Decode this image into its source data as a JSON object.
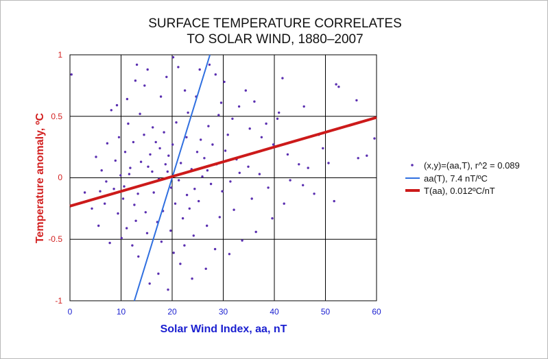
{
  "chart_data": {
    "type": "scatter",
    "title_lines": [
      "SURFACE TEMPERATURE CORRELATES",
      "TO SOLAR WIND, 1880–2007"
    ],
    "xlabel": "Solar Wind Index, aa, nT",
    "ylabel": "Temperature anomaly, ºC",
    "xlim": [
      0,
      60
    ],
    "ylim": [
      -1,
      1
    ],
    "x_ticks": [
      "0",
      "10",
      "20",
      "30",
      "40",
      "50",
      "60"
    ],
    "y_ticks": [
      "1",
      "0.5",
      "0",
      "-0.5",
      "-1"
    ],
    "grid": true,
    "legend_position": "right",
    "colors": {
      "points": "#5a2fb0",
      "fit_aa_of_T": "#2f6fe0",
      "fit_T_of_aa": "#cc1a1a",
      "x_axis_text": "#1a1fd0",
      "y_axis_text": "#d21f1f"
    },
    "series": [
      {
        "name": "(x,y)=(aa,T), r^2 = 0.089",
        "kind": "scatter",
        "points": [
          [
            20.2,
            0.98
          ],
          [
            28.5,
            0.84
          ],
          [
            30.2,
            0.78
          ],
          [
            41.6,
            0.81
          ],
          [
            52.1,
            0.76
          ],
          [
            52.6,
            0.74
          ],
          [
            56.1,
            0.63
          ],
          [
            45.8,
            0.58
          ],
          [
            40.9,
            0.53
          ],
          [
            40.6,
            0.48
          ],
          [
            48.7,
            0.35
          ],
          [
            49.5,
            0.24
          ],
          [
            58.1,
            0.18
          ],
          [
            59.6,
            0.32
          ],
          [
            56.4,
            0.16
          ],
          [
            50.6,
            0.12
          ],
          [
            46.6,
            0.08
          ],
          [
            38.4,
            0.44
          ],
          [
            36.1,
            0.62
          ],
          [
            34.4,
            0.71
          ],
          [
            33.1,
            0.58
          ],
          [
            27.3,
            0.92
          ],
          [
            25.4,
            0.88
          ],
          [
            21.2,
            0.9
          ],
          [
            18.9,
            0.82
          ],
          [
            15.2,
            0.88
          ],
          [
            14.6,
            0.75
          ],
          [
            12.8,
            0.79
          ],
          [
            13.1,
            0.92
          ],
          [
            11.2,
            0.64
          ],
          [
            9.2,
            0.59
          ],
          [
            8.1,
            0.55
          ],
          [
            0.3,
            0.84
          ],
          [
            17.8,
            0.66
          ],
          [
            22.5,
            0.71
          ],
          [
            24.7,
            0.66
          ],
          [
            29.6,
            0.61
          ],
          [
            31.8,
            0.48
          ],
          [
            35.2,
            0.4
          ],
          [
            37.5,
            0.33
          ],
          [
            39.8,
            0.27
          ],
          [
            42.6,
            0.19
          ],
          [
            44.8,
            0.11
          ],
          [
            43.1,
            -0.02
          ],
          [
            45.6,
            -0.06
          ],
          [
            47.8,
            -0.13
          ],
          [
            51.7,
            -0.19
          ],
          [
            41.9,
            -0.21
          ],
          [
            39.6,
            -0.33
          ],
          [
            36.4,
            -0.44
          ],
          [
            33.7,
            -0.51
          ],
          [
            31.2,
            -0.62
          ],
          [
            28.4,
            -0.58
          ],
          [
            26.6,
            -0.74
          ],
          [
            23.9,
            -0.82
          ],
          [
            21.6,
            -0.7
          ],
          [
            19.2,
            -0.91
          ],
          [
            17.3,
            -0.78
          ],
          [
            15.6,
            -0.86
          ],
          [
            12.2,
            -0.55
          ],
          [
            10.1,
            -0.49
          ],
          [
            7.8,
            -0.53
          ],
          [
            5.6,
            -0.39
          ],
          [
            4.3,
            -0.25
          ],
          [
            2.9,
            -0.12
          ],
          [
            6.2,
            0.06
          ],
          [
            5.1,
            0.17
          ],
          [
            7.3,
            0.28
          ],
          [
            9.6,
            0.33
          ],
          [
            11.4,
            0.44
          ],
          [
            13.7,
            0.52
          ],
          [
            16.2,
            0.41
          ],
          [
            18.4,
            0.37
          ],
          [
            20.8,
            0.45
          ],
          [
            23.1,
            0.53
          ],
          [
            25.6,
            0.31
          ],
          [
            27.9,
            0.27
          ],
          [
            30.4,
            0.22
          ],
          [
            32.6,
            0.15
          ],
          [
            34.9,
            0.09
          ],
          [
            37.1,
            0.03
          ],
          [
            38.8,
            -0.08
          ],
          [
            35.6,
            -0.17
          ],
          [
            32.1,
            -0.26
          ],
          [
            29.3,
            -0.32
          ],
          [
            26.8,
            -0.39
          ],
          [
            24.2,
            -0.47
          ],
          [
            22.4,
            -0.55
          ],
          [
            19.7,
            -0.43
          ],
          [
            17.1,
            -0.36
          ],
          [
            14.8,
            -0.28
          ],
          [
            12.6,
            -0.22
          ],
          [
            10.4,
            -0.17
          ],
          [
            8.6,
            -0.09
          ],
          [
            7.1,
            -0.03
          ],
          [
            9.9,
            0.02
          ],
          [
            11.8,
            0.08
          ],
          [
            13.9,
            0.13
          ],
          [
            15.7,
            0.19
          ],
          [
            17.6,
            0.24
          ],
          [
            19.3,
            0.18
          ],
          [
            21.7,
            0.12
          ],
          [
            23.8,
            0.07
          ],
          [
            25.9,
            0.01
          ],
          [
            27.6,
            -0.05
          ],
          [
            29.8,
            -0.11
          ],
          [
            31.4,
            -0.03
          ],
          [
            33.2,
            0.04
          ],
          [
            22.9,
            -0.14
          ],
          [
            20.6,
            -0.21
          ],
          [
            18.2,
            -0.27
          ],
          [
            16.4,
            -0.12
          ],
          [
            14.2,
            -0.06
          ],
          [
            12.9,
            -0.35
          ],
          [
            11.1,
            -0.41
          ],
          [
            9.4,
            -0.29
          ],
          [
            6.8,
            -0.21
          ],
          [
            5.9,
            -0.11
          ],
          [
            8.9,
            0.14
          ],
          [
            10.8,
            0.21
          ],
          [
            12.4,
            0.29
          ],
          [
            14.5,
            0.35
          ],
          [
            16.8,
            0.29
          ],
          [
            19.1,
            0.05
          ],
          [
            21.3,
            -0.02
          ],
          [
            24.4,
            -0.09
          ],
          [
            26.3,
            0.16
          ],
          [
            28.7,
            0.11
          ],
          [
            30.9,
            0.35
          ],
          [
            15.1,
            -0.45
          ],
          [
            17.9,
            -0.52
          ],
          [
            20.3,
            -0.61
          ],
          [
            22.1,
            -0.33
          ],
          [
            13.4,
            -0.64
          ],
          [
            11.6,
            0.03
          ],
          [
            16.1,
            0.05
          ],
          [
            18.7,
            0.11
          ],
          [
            24.9,
            0.21
          ],
          [
            27.1,
            0.42
          ],
          [
            29.1,
            0.51
          ],
          [
            20.1,
            0.27
          ],
          [
            22.8,
            0.33
          ],
          [
            19.8,
            -0.08
          ],
          [
            17.4,
            -0.01
          ],
          [
            15.3,
            0.09
          ],
          [
            13.3,
            -0.13
          ],
          [
            10.6,
            -0.07
          ],
          [
            23.4,
            -0.25
          ],
          [
            25.2,
            -0.19
          ],
          [
            26.9,
            0.06
          ]
        ]
      },
      {
        "name": "aa(T), 7.4 nT/ºC",
        "kind": "line",
        "x": [
          12.6,
          27.4
        ],
        "y": [
          -1,
          1
        ]
      },
      {
        "name": "T(aa), 0.012ºC/nT",
        "kind": "line",
        "x": [
          0,
          60
        ],
        "y": [
          -0.23,
          0.49
        ]
      }
    ]
  }
}
